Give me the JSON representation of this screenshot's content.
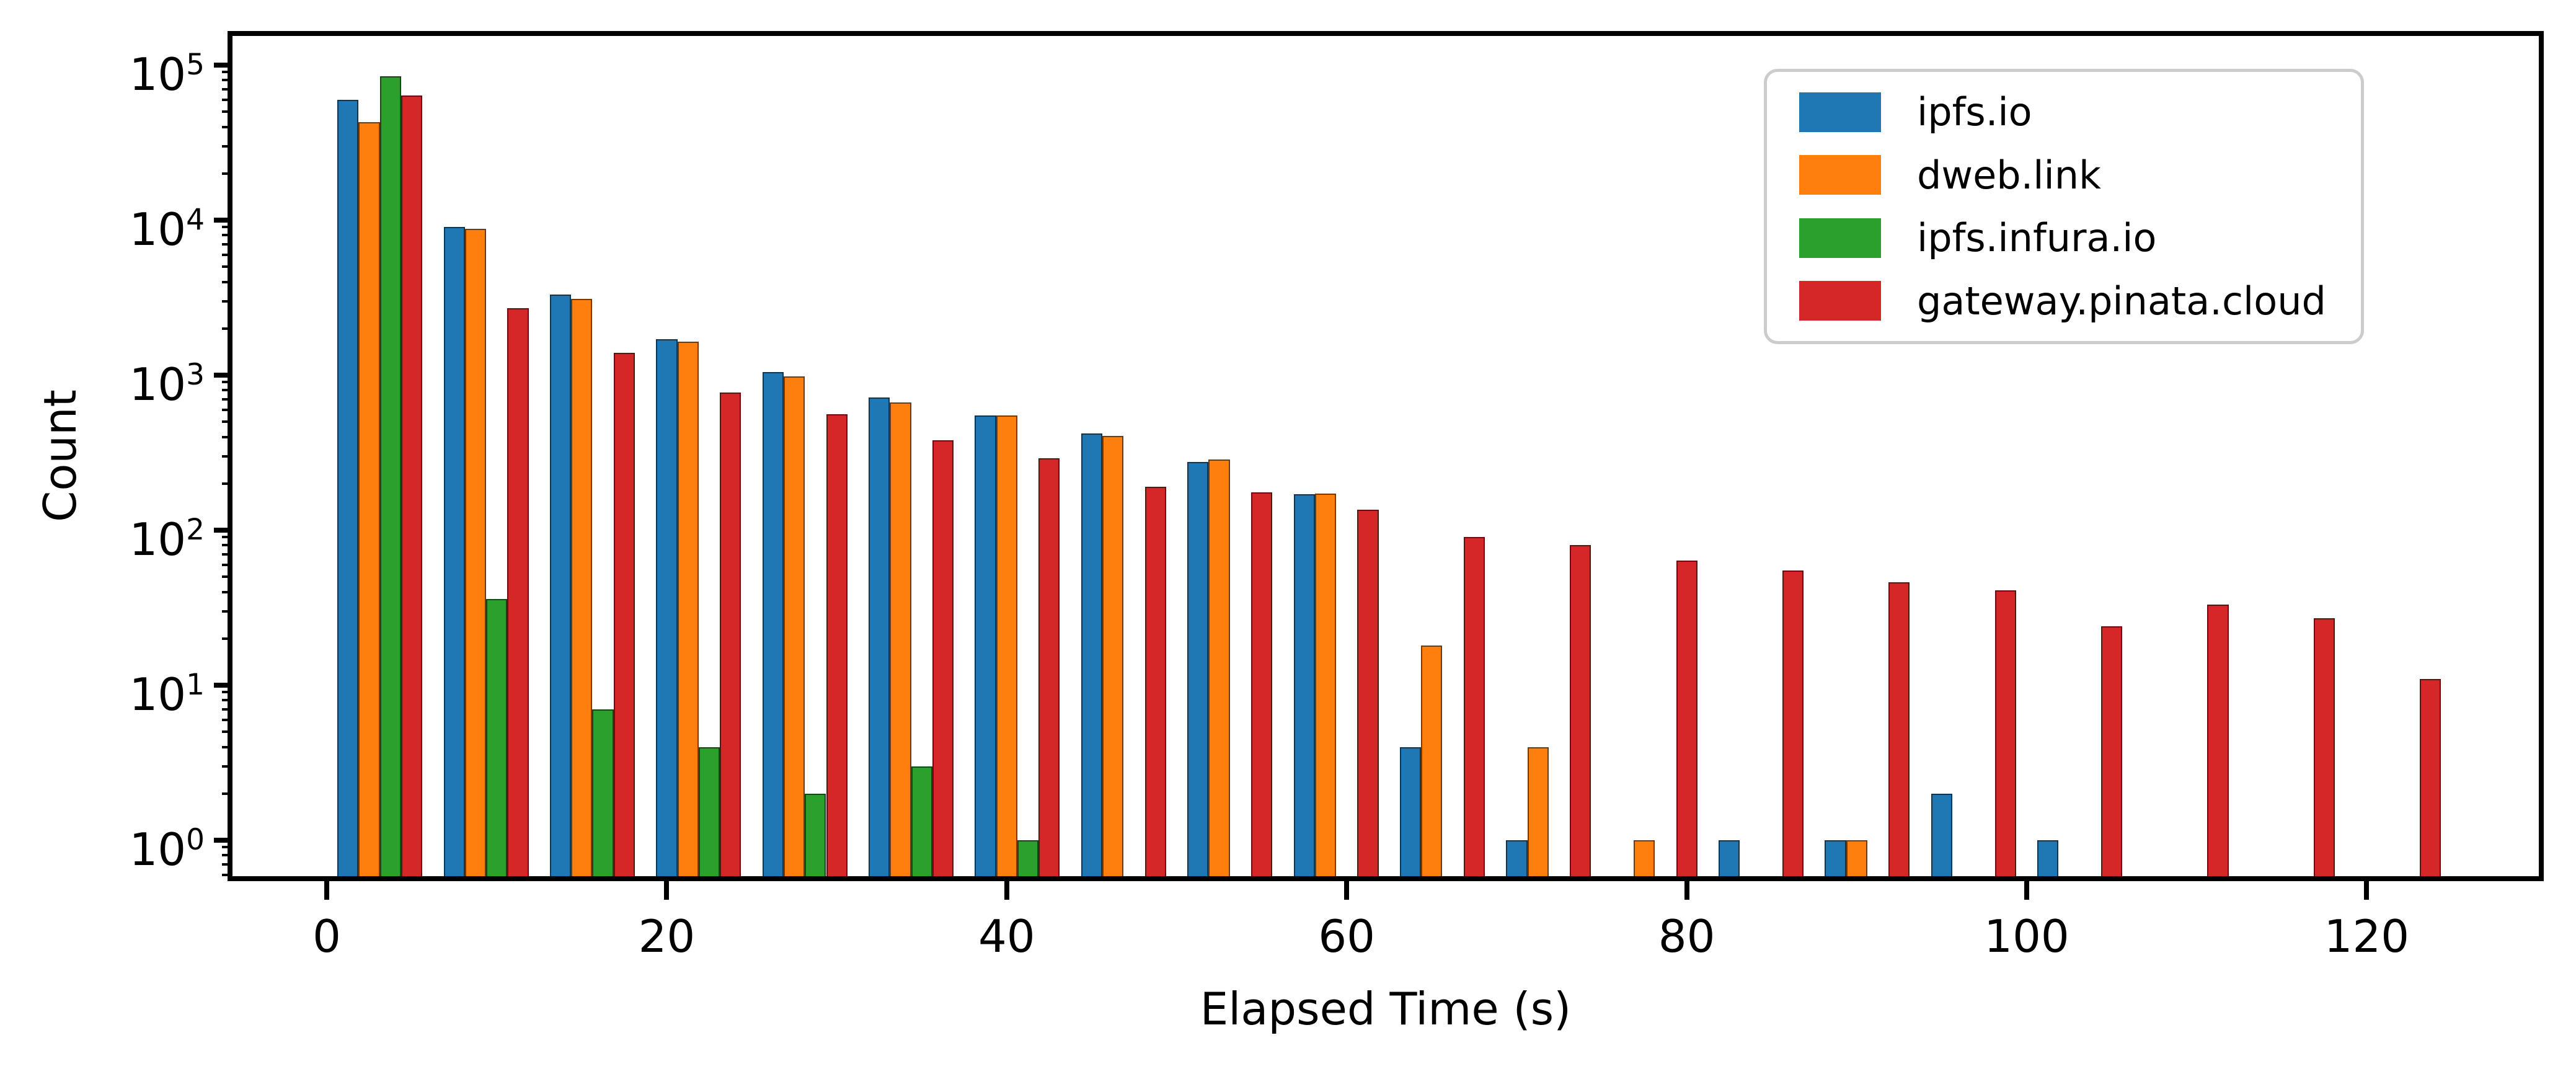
{
  "chart_data": {
    "type": "bar",
    "subtype": "grouped-histogram",
    "title": "",
    "xlabel": "Elapsed Time (s)",
    "ylabel": "Count",
    "y_scale": "log",
    "grid": false,
    "legend_position": "upper right",
    "bin_width_s": 6.25,
    "bin_starts": [
      0,
      6.25,
      12.5,
      18.75,
      25,
      31.25,
      37.5,
      43.75,
      50,
      56.25,
      62.5,
      68.75,
      75,
      81.25,
      87.5,
      93.75,
      100,
      106.25,
      112.5,
      118.75
    ],
    "x_ticks": [
      0,
      20,
      40,
      60,
      80,
      100,
      120
    ],
    "y_tick_exponents": [
      0,
      1,
      2,
      3,
      4,
      5
    ],
    "x_range_s": [
      -5.5,
      130.2
    ],
    "y_range": [
      0.586,
      154000
    ],
    "series": [
      {
        "name": "ipfs.io",
        "color": "#1f77b4",
        "values": [
          60000,
          9000,
          3300,
          1700,
          1050,
          720,
          550,
          420,
          275,
          170,
          4,
          1,
          0,
          1,
          1,
          2,
          1,
          0,
          0,
          0
        ]
      },
      {
        "name": "dweb.link",
        "color": "#ff7f0e",
        "values": [
          43000,
          8800,
          3100,
          1650,
          980,
          670,
          550,
          405,
          285,
          172,
          18,
          4,
          1,
          0,
          1,
          0,
          0,
          0,
          0,
          0
        ]
      },
      {
        "name": "ipfs.infura.io",
        "color": "#2ca02c",
        "values": [
          85000,
          36,
          7,
          4,
          2,
          3,
          1,
          0,
          0,
          0,
          0,
          0,
          0,
          0,
          0,
          0,
          0,
          0,
          0,
          0
        ]
      },
      {
        "name": "gateway.pinata.cloud",
        "color": "#d62728",
        "values": [
          64000,
          2700,
          1400,
          770,
          560,
          380,
          290,
          190,
          175,
          136,
          90,
          80,
          64,
          55,
          46,
          41,
          24,
          33,
          27,
          11
        ]
      }
    ]
  }
}
